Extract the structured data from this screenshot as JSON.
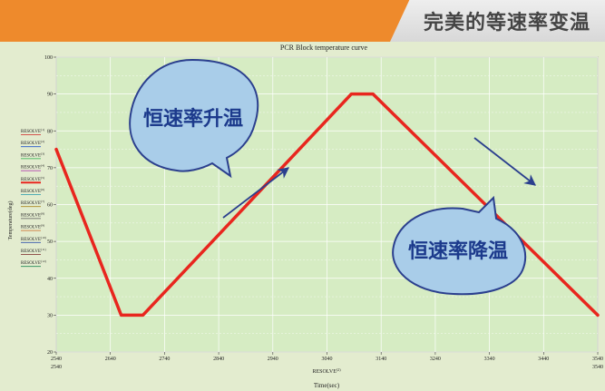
{
  "banner": {
    "title": "完美的等速率变温"
  },
  "colors": {
    "line": "#e8261e",
    "arrow": "#2b3f8e",
    "bubble_fill": "#a9cde9",
    "bubble_stroke": "#2b3f8e",
    "bubble_text": "#1c3a8c",
    "banner_orange": "#ee8a2c"
  },
  "callouts": {
    "ramp_up": "恒速率升温",
    "ramp_down": "恒速率降温"
  },
  "chart_data": {
    "type": "line",
    "title": "PCR Block temperature curve",
    "xlabel": "Time(sec)",
    "ylabel": "Temperature(deg)",
    "x_sublabel": "RESOLVE",
    "x_sublabel_sup": "(2)",
    "xlim": [
      2540,
      3540
    ],
    "ylim": [
      20,
      100
    ],
    "xticks": [
      2540,
      2640,
      2740,
      2840,
      2940,
      3040,
      3140,
      3240,
      3340,
      3440,
      3540
    ],
    "xtick_labels": [
      "2540",
      "2640",
      "2740",
      "2840",
      "2940",
      "3040",
      "3140",
      "3240",
      "3340",
      "3440",
      "3540"
    ],
    "yticks": [
      20,
      30,
      40,
      50,
      60,
      70,
      80,
      90,
      100
    ],
    "ytick_labels": [
      "20",
      "30",
      "40",
      "50",
      "60",
      "70",
      "80",
      "90",
      "100"
    ],
    "grid": true,
    "legend": {
      "placement": "left",
      "entries": [
        {
          "name": "RESOLVE",
          "sup": "(1)"
        },
        {
          "name": "RESOLVE",
          "sup": "(2)"
        },
        {
          "name": "RESOLVE",
          "sup": "(3)"
        },
        {
          "name": "RESOLVE",
          "sup": "(4)"
        },
        {
          "name": "RESOLVE",
          "sup": "(5)"
        },
        {
          "name": "RESOLVE",
          "sup": "(6)"
        },
        {
          "name": "RESOLVE",
          "sup": "(7)"
        },
        {
          "name": "RESOLVE",
          "sup": "(8)"
        },
        {
          "name": "RESOLVE",
          "sup": "(9)"
        },
        {
          "name": "RESOLVE",
          "sup": "(10)"
        },
        {
          "name": "RESOLVE",
          "sup": "(11)"
        },
        {
          "name": "RESOLVE",
          "sup": "(12)"
        }
      ]
    },
    "series": [
      {
        "x": [
          2540,
          2660,
          2700,
          3085,
          3125,
          3540
        ],
        "y": [
          75,
          30,
          30,
          90,
          90,
          30
        ]
      }
    ]
  }
}
